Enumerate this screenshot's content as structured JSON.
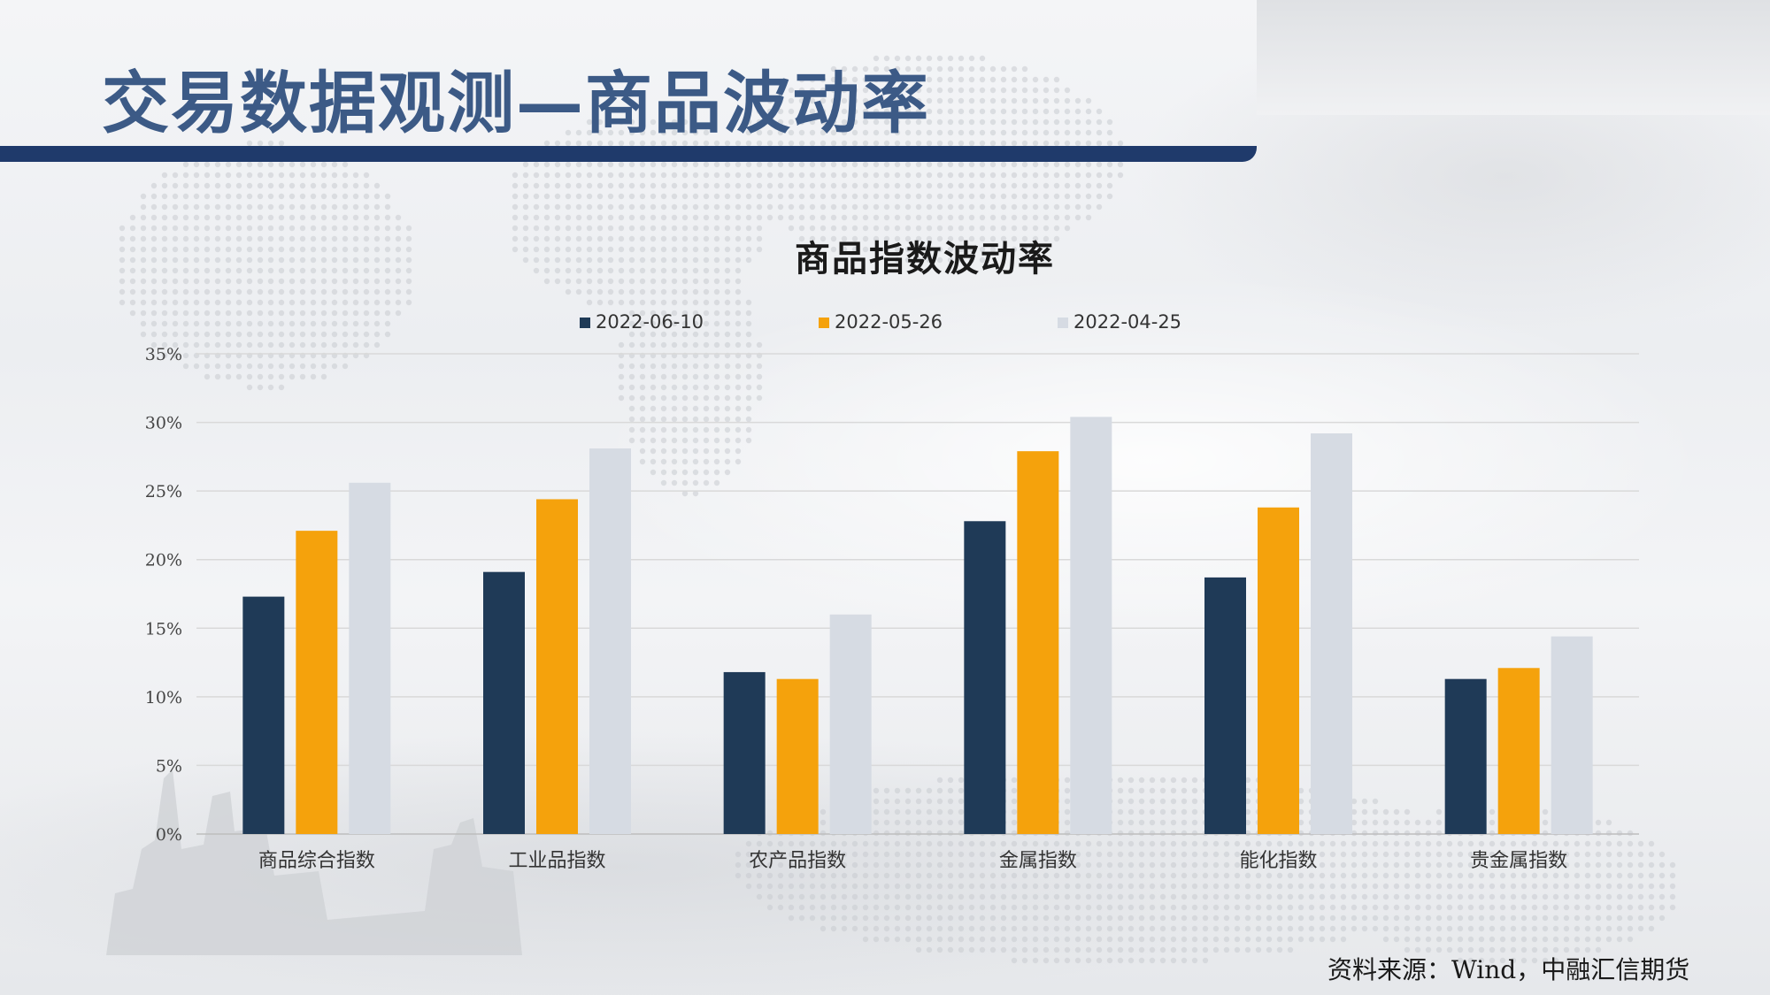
{
  "page": {
    "title": "交易数据观测—商品波动率",
    "source": "资料来源：Wind，中融汇信期货"
  },
  "chart_data": {
    "type": "bar",
    "title": "商品指数波动率",
    "categories": [
      "商品综合指数",
      "工业品指数",
      "农产品指数",
      "金属指数",
      "能化指数",
      "贵金属指数"
    ],
    "series": [
      {
        "name": "2022-06-10",
        "color": "#1f3a57",
        "values": [
          17.3,
          19.1,
          11.8,
          22.8,
          18.7,
          11.3
        ]
      },
      {
        "name": "2022-05-26",
        "color": "#f5a20c",
        "values": [
          22.1,
          24.4,
          11.3,
          27.9,
          23.8,
          12.1
        ]
      },
      {
        "name": "2022-04-25",
        "color": "#d6dbe3",
        "values": [
          25.6,
          28.1,
          16.0,
          30.4,
          29.2,
          14.4
        ]
      }
    ],
    "ylim": [
      0,
      35
    ],
    "yticks": [
      "0%",
      "5%",
      "10%",
      "15%",
      "20%",
      "25%",
      "30%",
      "35%"
    ],
    "grid": true,
    "legend_position": "top"
  },
  "colors": {
    "title_text": "#3c5a86",
    "title_bar": "#1f3a6b"
  }
}
